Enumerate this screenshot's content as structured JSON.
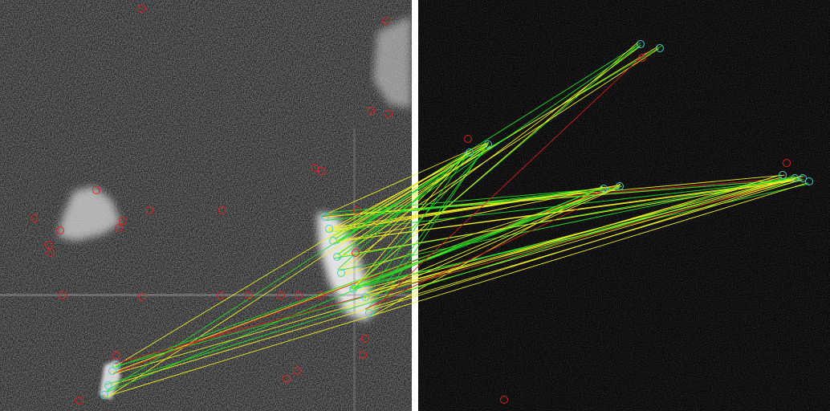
{
  "figure": {
    "left_panel": {
      "kind": "sar-intensity-image",
      "tone": "grey-speckle"
    },
    "right_panel": {
      "kind": "sar-intensity-image",
      "tone": "dark-speckle"
    },
    "divider_color": "#ffffff",
    "colors": {
      "keypoint_unmatched": "#e02020",
      "keypoint_matched": "#40d0d0",
      "match_inlier": "#22dd22",
      "match_candidate": "#f0f020",
      "match_outlier": "#d42020"
    }
  }
}
